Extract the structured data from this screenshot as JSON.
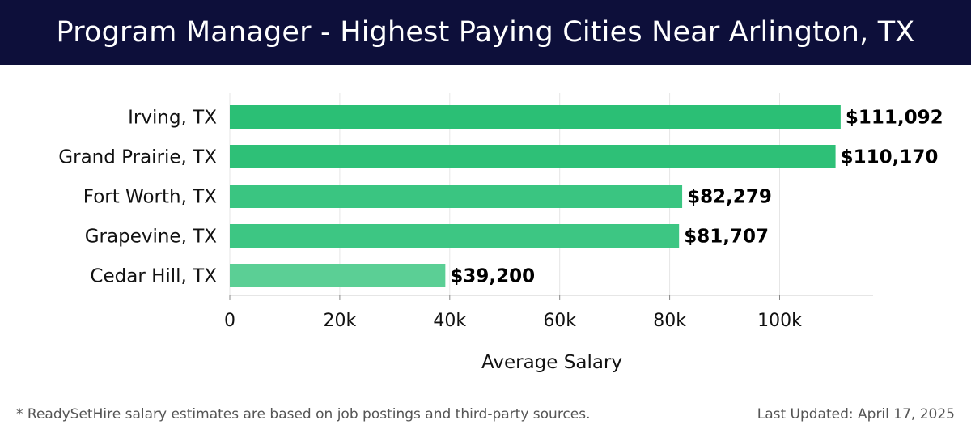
{
  "header": {
    "title": "Program Manager - Highest Paying Cities Near Arlington, TX"
  },
  "footer": {
    "note": "* ReadySetHire salary estimates are based on job postings and third-party sources.",
    "updated": "Last Updated: April 17, 2025"
  },
  "colors": {
    "header_bg": "#0d0f3a",
    "bar_colors": [
      "#2bbf75",
      "#2ec077",
      "#3ac581",
      "#3dc683",
      "#5bcf95"
    ],
    "grid": "#e6e6e6",
    "axis": "#cccccc"
  },
  "chart_data": {
    "type": "bar",
    "orientation": "horizontal",
    "title": "Program Manager - Highest Paying Cities Near Arlington, TX",
    "xlabel": "Average Salary",
    "ylabel": "",
    "categories": [
      "Irving, TX",
      "Grand Prairie, TX",
      "Fort Worth, TX",
      "Grapevine, TX",
      "Cedar Hill, TX"
    ],
    "values": [
      111092,
      110170,
      82279,
      81707,
      39200
    ],
    "value_labels": [
      "$111,092",
      "$110,170",
      "$82,279",
      "$81,707",
      "$39,200"
    ],
    "xlim": [
      0,
      117000
    ],
    "xticks": [
      0,
      20000,
      40000,
      60000,
      80000,
      100000
    ],
    "xtick_labels": [
      "0",
      "20k",
      "40k",
      "60k",
      "80k",
      "100k"
    ],
    "grid": true,
    "legend": "none"
  }
}
